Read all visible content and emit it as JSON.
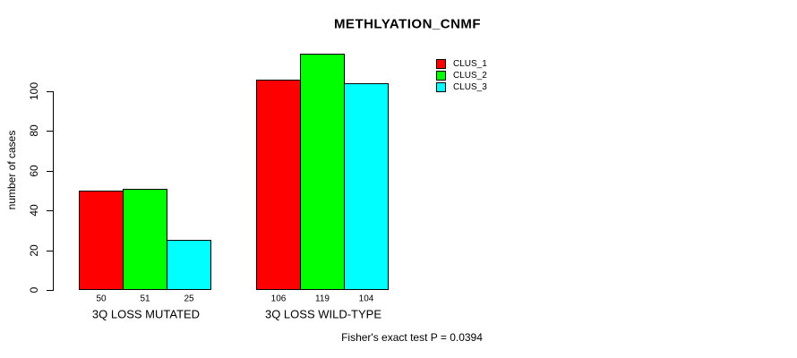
{
  "chart_data": {
    "type": "bar",
    "title": "METHLYATION_CNMF",
    "ylabel": "number of cases",
    "xlabel": "",
    "categories": [
      "3Q LOSS MUTATED",
      "3Q LOSS WILD-TYPE"
    ],
    "series": [
      {
        "name": "CLUS_1",
        "color": "#ff0000",
        "values": [
          50,
          106
        ]
      },
      {
        "name": "CLUS_2",
        "color": "#00ff00",
        "values": [
          51,
          119
        ]
      },
      {
        "name": "CLUS_3",
        "color": "#00ffff",
        "values": [
          25,
          104
        ]
      }
    ],
    "yticks": [
      0,
      20,
      40,
      60,
      80,
      100
    ],
    "ylim": [
      0,
      120
    ],
    "grid": false,
    "legend_position": "top-right",
    "bar_border_color": "#000000",
    "annotation": "Fisher's exact test P = 0.0394"
  }
}
